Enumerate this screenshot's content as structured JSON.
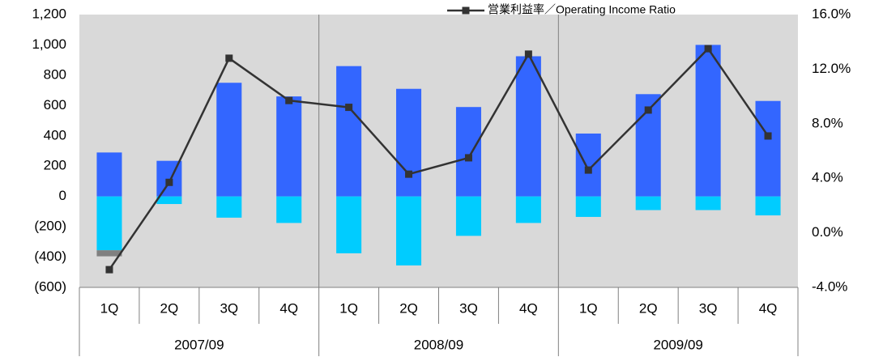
{
  "chart_data": {
    "type": "bar",
    "legend_label": "営業利益率／Operating Income Ratio",
    "categories": [
      "1Q",
      "2Q",
      "3Q",
      "4Q",
      "1Q",
      "2Q",
      "3Q",
      "4Q",
      "1Q",
      "2Q",
      "3Q",
      "4Q"
    ],
    "groups": [
      "2007/09",
      "2008/09",
      "2009/09"
    ],
    "series": [
      {
        "color": "#3366ff",
        "values": [
          290,
          235,
          750,
          660,
          860,
          710,
          590,
          925,
          415,
          675,
          1000,
          630
        ]
      },
      {
        "color": "#00ccff",
        "values": [
          -355,
          -50,
          -140,
          -175,
          -375,
          -455,
          -260,
          -175,
          -135,
          -90,
          -90,
          -125
        ]
      },
      {
        "color": "#808080",
        "values": [
          -40,
          null,
          null,
          null,
          null,
          null,
          null,
          null,
          null,
          null,
          null,
          null
        ]
      },
      {
        "name": "営業利益率／Operating Income Ratio",
        "color": "#333333",
        "type": "line",
        "axis": "y2",
        "values": [
          -2.7,
          3.7,
          12.8,
          9.7,
          9.2,
          4.3,
          5.5,
          13.1,
          4.6,
          9.0,
          13.5,
          7.1
        ]
      }
    ],
    "ylim": [
      -600,
      1200
    ],
    "yticks": [
      {
        "value": -600,
        "label": "(600)"
      },
      {
        "value": -400,
        "label": "(400)"
      },
      {
        "value": -200,
        "label": "(200)"
      },
      0,
      200,
      400,
      600,
      800,
      {
        "value": 1000,
        "label": "1,000"
      },
      {
        "value": 1200,
        "label": "1,200"
      }
    ],
    "y2lim": [
      -4,
      16
    ],
    "y2ticks": [
      {
        "value": -4,
        "label": "-4.0%"
      },
      {
        "value": 0,
        "label": "0.0%"
      },
      {
        "value": 4,
        "label": "4.0%"
      },
      {
        "value": 8,
        "label": "8.0%"
      },
      {
        "value": 12,
        "label": "12.0%"
      },
      {
        "value": 16,
        "label": "16.0%"
      }
    ],
    "legend": "top-right",
    "grid": false
  }
}
